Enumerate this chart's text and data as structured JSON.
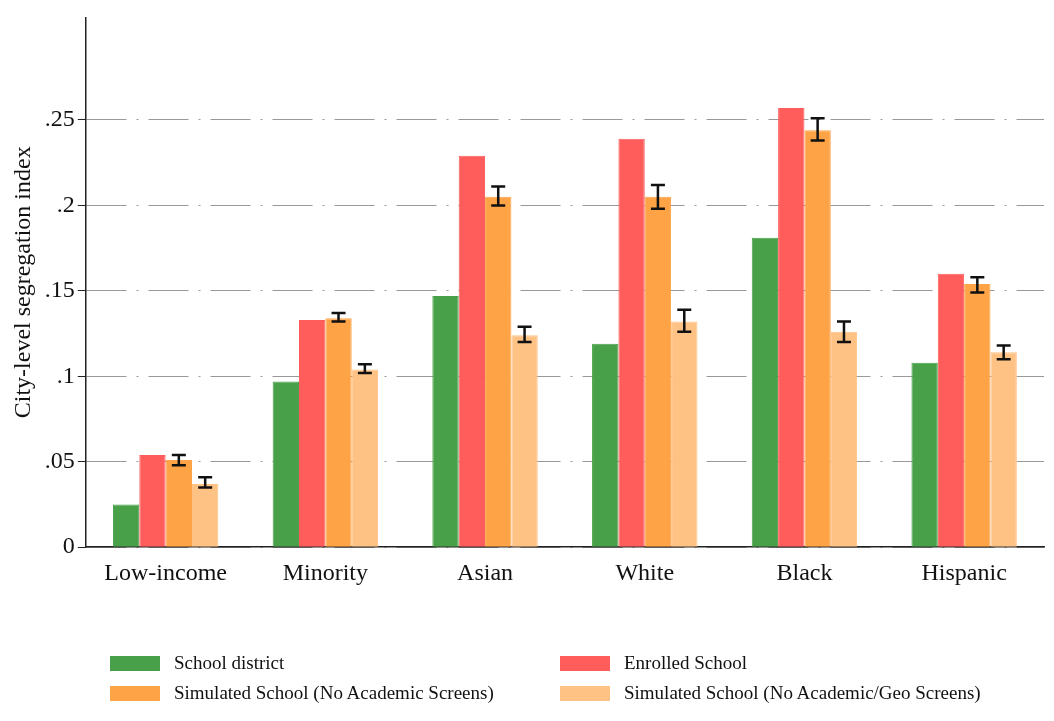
{
  "chart_data": {
    "type": "bar",
    "ylabel": "City-level segregation index",
    "categories": [
      "Low-income",
      "Minority",
      "Asian",
      "White",
      "Black",
      "Hispanic"
    ],
    "series": [
      {
        "name": "School district",
        "color": "#48a148",
        "values": [
          0.025,
          0.097,
          0.147,
          0.119,
          0.181,
          0.108
        ]
      },
      {
        "name": "Enrolled School",
        "color": "#ff5c5c",
        "values": [
          0.054,
          0.133,
          0.229,
          0.239,
          0.257,
          0.16
        ]
      },
      {
        "name": "Simulated School (No Academic Screens)",
        "color": "#ffa347",
        "values": [
          0.051,
          0.134,
          0.205,
          0.205,
          0.244,
          0.154
        ],
        "errors": [
          [
            0.048,
            0.054
          ],
          [
            0.132,
            0.137
          ],
          [
            0.2,
            0.211
          ],
          [
            0.198,
            0.212
          ],
          [
            0.238,
            0.251
          ],
          [
            0.149,
            0.158
          ]
        ]
      },
      {
        "name": "Simulated School (No Academic/Geo Screens)",
        "color": "#ffc285",
        "values": [
          0.037,
          0.104,
          0.124,
          0.132,
          0.126,
          0.114
        ],
        "errors": [
          [
            0.035,
            0.041
          ],
          [
            0.102,
            0.107
          ],
          [
            0.12,
            0.129
          ],
          [
            0.126,
            0.139
          ],
          [
            0.12,
            0.132
          ],
          [
            0.11,
            0.118
          ]
        ]
      }
    ],
    "ylim": [
      0,
      0.31
    ],
    "yticks": [
      {
        "value": 0,
        "label": "0"
      },
      {
        "value": 0.05,
        "label": ".05"
      },
      {
        "value": 0.1,
        "label": ".1"
      },
      {
        "value": 0.15,
        "label": ".15"
      },
      {
        "value": 0.2,
        "label": ".2"
      },
      {
        "value": 0.25,
        "label": ".25"
      }
    ],
    "grid": "y",
    "legend": "bottom"
  }
}
